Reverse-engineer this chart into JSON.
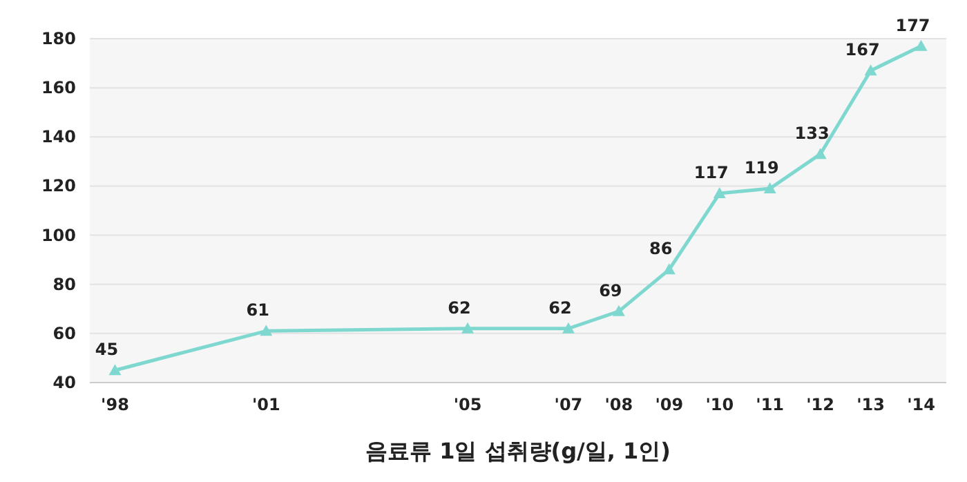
{
  "chart_data": {
    "type": "line",
    "xlabel": "음료류 1일 섭취량(g/일, 1인)",
    "x": [
      1998,
      2001,
      2005,
      2007,
      2008,
      2009,
      2010,
      2011,
      2012,
      2013,
      2014
    ],
    "series": [
      {
        "color": "#7fd8d0",
        "values": [
          45,
          61,
          62,
          62,
          69,
          86,
          117,
          119,
          133,
          167,
          177
        ]
      }
    ],
    "xlim": [
      1997.5,
      2014.5
    ],
    "xticks": [
      {
        "value": 1998,
        "label": "'98"
      },
      {
        "value": 2001,
        "label": "'01"
      },
      {
        "value": 2005,
        "label": "'05"
      },
      {
        "value": 2007,
        "label": "'07"
      },
      {
        "value": 2008,
        "label": "'08"
      },
      {
        "value": 2009,
        "label": "'09"
      },
      {
        "value": 2010,
        "label": "'10"
      },
      {
        "value": 2011,
        "label": "'11"
      },
      {
        "value": 2012,
        "label": "'12"
      },
      {
        "value": 2013,
        "label": "'13"
      },
      {
        "value": 2014,
        "label": "'14"
      }
    ],
    "ylim": [
      40,
      180
    ],
    "yticks": [
      40,
      60,
      80,
      100,
      120,
      140,
      160,
      180
    ],
    "grid": "y",
    "marker": "triangle",
    "line_style": "solid",
    "data_labels": true
  }
}
